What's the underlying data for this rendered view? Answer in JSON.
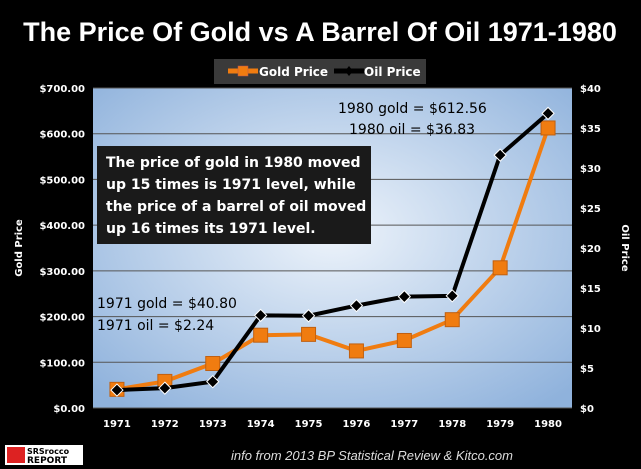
{
  "chart_data": {
    "type": "line",
    "title": "The Price Of Gold vs A Barrel Of Oil 1971-1980",
    "categories": [
      "1971",
      "1972",
      "1973",
      "1974",
      "1975",
      "1976",
      "1977",
      "1978",
      "1979",
      "1980"
    ],
    "series": [
      {
        "name": "Gold Price",
        "axis": "left",
        "color": "#f07c10",
        "marker": "square",
        "values": [
          40.8,
          58.16,
          97.32,
          159.26,
          161.02,
          124.84,
          147.71,
          193.22,
          306.68,
          612.56
        ]
      },
      {
        "name": "Oil Price",
        "axis": "right",
        "color": "#000000",
        "marker": "diamond",
        "values": [
          2.24,
          2.48,
          3.29,
          11.58,
          11.53,
          12.8,
          13.92,
          14.02,
          31.61,
          36.83
        ]
      }
    ],
    "ylabel": "Gold Price",
    "y2label": "Oil Price",
    "ylim": [
      0,
      700
    ],
    "y2lim": [
      0,
      40
    ],
    "yticks": [
      "$0.00",
      "$100.00",
      "$200.00",
      "$300.00",
      "$400.00",
      "$500.00",
      "$600.00",
      "$700.00"
    ],
    "y2ticks": [
      "$0",
      "$5",
      "$10",
      "$15",
      "$20",
      "$25",
      "$30",
      "$35",
      "$40"
    ],
    "grid": true,
    "legend": "top"
  },
  "annotations": {
    "top": [
      "1980 gold = $612.56",
      "1980 oil = $36.83"
    ],
    "box": [
      "The price of gold in 1980 moved",
      "up 15 times is 1971 level, while",
      "the price of a barrel of oil moved",
      "up 16 times its 1971 level."
    ],
    "bottom": [
      "1971 gold = $40.80",
      "1971 oil = $2.24"
    ]
  },
  "logo": {
    "text": [
      "SRSrocco",
      "REPORT"
    ]
  },
  "source": "info from 2013 BP Statistical Review & Kitco.com"
}
